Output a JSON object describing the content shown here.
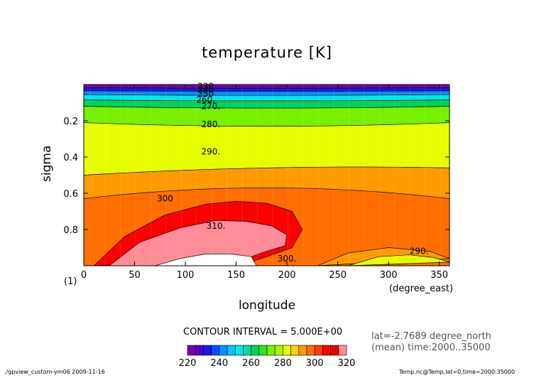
{
  "chart_data": {
    "type": "contour",
    "title": "temperature [K]",
    "xlabel": "longitude",
    "x_units": "(degree_east)",
    "ylabel": "sigma",
    "panel_index": "(1)",
    "xlim": [
      0,
      360
    ],
    "ylim": [
      1.0,
      0.0
    ],
    "x_ticks": [
      0,
      50,
      100,
      150,
      200,
      250,
      300,
      350
    ],
    "y_ticks": [
      0.2,
      0.4,
      0.6,
      0.8
    ],
    "contour_interval_text": "CONTOUR INTERVAL = 5.000E+00",
    "colorbar": {
      "levels": [
        220,
        225,
        230,
        235,
        240,
        245,
        250,
        255,
        260,
        265,
        270,
        275,
        280,
        285,
        290,
        295,
        300,
        305,
        310,
        315,
        320
      ],
      "tick_labels": [
        "220",
        "240",
        "260",
        "280",
        "300",
        "320"
      ],
      "colors": [
        "#7b00a8",
        "#5000c8",
        "#1a1ae6",
        "#0050ff",
        "#0090ff",
        "#00c8ff",
        "#00e6e6",
        "#00dca0",
        "#00d25a",
        "#2ee61e",
        "#78f000",
        "#b4f000",
        "#e6ff00",
        "#ffd200",
        "#ff9b00",
        "#ff6e00",
        "#ff3c00",
        "#ff0000",
        "#e80000",
        "#ff8c96"
      ]
    },
    "bands": [
      {
        "min": 300,
        "max": 305,
        "color": "#ff0000",
        "x": [
          10,
          40,
          80,
          120,
          150,
          180,
          205,
          215,
          205,
          175,
          150,
          125
        ],
        "y": [
          1.0,
          0.84,
          0.72,
          0.66,
          0.645,
          0.655,
          0.7,
          0.8,
          0.9,
          0.96,
          1.0,
          0.97
        ]
      },
      {
        "min": 305,
        "max": 310,
        "color": "#ff8c96",
        "x": [
          25,
          55,
          95,
          130,
          160,
          185,
          200,
          198,
          180,
          165,
          150
        ],
        "y": [
          1.0,
          0.87,
          0.79,
          0.75,
          0.755,
          0.78,
          0.83,
          0.89,
          0.92,
          0.95,
          1.0
        ]
      },
      {
        "min": 310,
        "max": 320,
        "color": "#ffffff",
        "x": [
          70,
          95,
          120,
          145,
          165,
          170
        ],
        "y": [
          1.0,
          0.96,
          0.935,
          0.935,
          0.95,
          1.0
        ]
      },
      {
        "min": 295,
        "max": 300,
        "color": "#ff9b00",
        "x": [
          230,
          260,
          300,
          340,
          360
        ],
        "y": [
          1.0,
          0.93,
          0.9,
          0.92,
          0.96
        ]
      },
      {
        "min": 290,
        "max": 295,
        "color": "#e6ff00",
        "x": [
          260,
          290,
          320,
          345,
          360
        ],
        "y": [
          1.0,
          0.95,
          0.94,
          0.955,
          0.98
        ]
      }
    ],
    "contour_lines": [
      {
        "level": 230,
        "y_west": 0.018,
        "y_mid": 0.02,
        "y_east": 0.018
      },
      {
        "level": 240,
        "y_west": 0.035,
        "y_mid": 0.037,
        "y_east": 0.035
      },
      {
        "level": 250,
        "y_west": 0.055,
        "y_mid": 0.06,
        "y_east": 0.055
      },
      {
        "level": 260,
        "y_west": 0.085,
        "y_mid": 0.09,
        "y_east": 0.085
      },
      {
        "level": 270,
        "y_west": 0.12,
        "y_mid": 0.13,
        "y_east": 0.12
      },
      {
        "level": 280,
        "y_west": 0.21,
        "y_mid": 0.23,
        "y_east": 0.21
      },
      {
        "level": 290,
        "y_west": 0.5,
        "y_mid": 0.46,
        "y_east": 0.46
      },
      {
        "level": 295,
        "y_west": 0.63,
        "y_mid": 0.57,
        "y_east": 0.63
      }
    ],
    "contour_labels": [
      {
        "text": "230",
        "x": 120,
        "y": 0.01
      },
      {
        "text": "240",
        "x": 120,
        "y": 0.03
      },
      {
        "text": "250",
        "x": 120,
        "y": 0.05
      },
      {
        "text": "260.",
        "x": 120,
        "y": 0.085
      },
      {
        "text": "270.",
        "x": 125,
        "y": 0.12
      },
      {
        "text": "280.",
        "x": 125,
        "y": 0.22
      },
      {
        "text": "290.",
        "x": 125,
        "y": 0.37
      },
      {
        "text": "300",
        "x": 80,
        "y": 0.63
      },
      {
        "text": "310.",
        "x": 130,
        "y": 0.78
      },
      {
        "text": "300.",
        "x": 200,
        "y": 0.96
      },
      {
        "text": "290.",
        "x": 330,
        "y": 0.92
      }
    ]
  },
  "footer": {
    "left": "./gpview_custom-ym06   2009-11-16",
    "right": "Temp.nc@Temp,lat=0,time=2000:35000"
  },
  "info": {
    "lat": "lat=-2.7689 degree_north",
    "mean": "(mean) time:2000..35000"
  }
}
